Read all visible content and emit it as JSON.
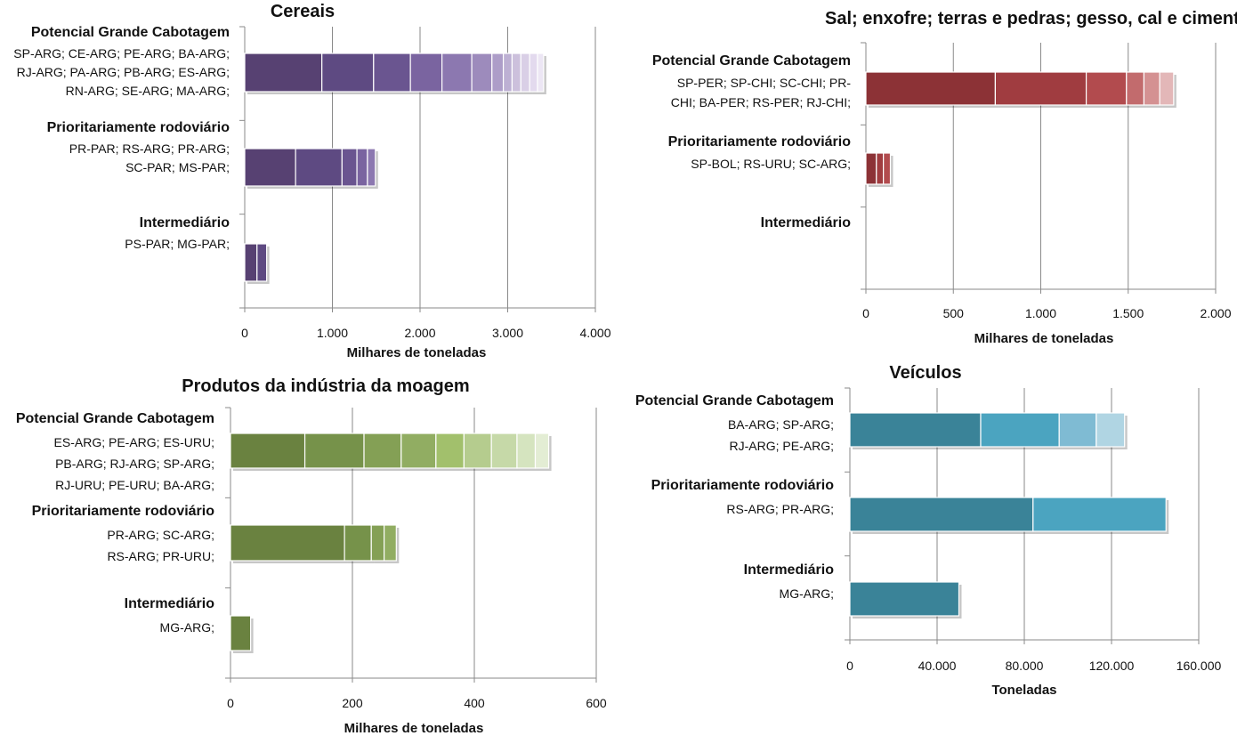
{
  "chart_data": [
    {
      "type": "bar",
      "stacked": true,
      "orientation": "horizontal",
      "title": "Cereais",
      "xlabel": "Milhares de toneladas",
      "xlim": [
        0,
        4000
      ],
      "xticks": [
        "0",
        "1.000",
        "2.000",
        "3.000",
        "4.000"
      ],
      "grid": true,
      "colors": [
        "#574172",
        "#5e4a82",
        "#6a5590",
        "#7a64a0",
        "#8c78b0",
        "#9d8bbc",
        "#ad9dc8",
        "#bdb0d3",
        "#ccc0dc",
        "#d9cfe6",
        "#e3daee",
        "#ece6f4"
      ],
      "categories": [
        {
          "group": "Potencial Grande Cabotagem",
          "routes": [
            "SP-ARG;  CE-ARG;  PE-ARG;  BA-ARG;",
            "RJ-ARG;  PA-ARG;  PB-ARG;  ES-ARG;",
            "RN-ARG;  SE-ARG;  MA-ARG;"
          ],
          "values": [
            880,
            590,
            420,
            360,
            340,
            230,
            130,
            100,
            100,
            100,
            90,
            70
          ]
        },
        {
          "group": "Prioritariamente rodoviário",
          "routes": [
            "PR-PAR;  RS-ARG;  PR-ARG;",
            "SC-PAR;  MS-PAR;"
          ],
          "values": [
            580,
            530,
            170,
            120,
            90
          ]
        },
        {
          "group": "Intermediário",
          "routes": [
            "PS-PAR;  MG-PAR;"
          ],
          "values": [
            140,
            110
          ]
        }
      ]
    },
    {
      "type": "bar",
      "stacked": true,
      "orientation": "horizontal",
      "title": "Sal; enxofre; terras e pedras; gesso, cal e cimento",
      "xlabel": "Milhares de toneladas",
      "xlim": [
        0,
        2000
      ],
      "xticks": [
        "0",
        "500",
        "1.000",
        "1.500",
        "2.000"
      ],
      "grid": true,
      "colors": [
        "#8c3236",
        "#a03c40",
        "#b24b4e",
        "#c26b6d",
        "#d49192",
        "#e3b7b8"
      ],
      "categories": [
        {
          "group": "Potencial Grande Cabotagem",
          "routes": [
            "SP-PER; SP-CHI; SC-CHI; PR-",
            "CHI; BA-PER; RS-PER; RJ-CHI;"
          ],
          "values": [
            740,
            520,
            230,
            100,
            90,
            80
          ]
        },
        {
          "group": "Prioritariamente rodoviário",
          "routes": [
            "SP-BOL; RS-URU; SC-ARG;"
          ],
          "values": [
            60,
            40,
            40
          ]
        },
        {
          "group": "Intermediário",
          "routes": [],
          "values": []
        }
      ]
    },
    {
      "type": "bar",
      "stacked": true,
      "orientation": "horizontal",
      "title": "Produtos da indústria da moagem",
      "xlabel": "Milhares de toneladas",
      "xlim": [
        0,
        600
      ],
      "xticks": [
        "0",
        "200",
        "400",
        "600"
      ],
      "grid": true,
      "colors": [
        "#6a8240",
        "#76924a",
        "#84a055",
        "#91ad62",
        "#a2c06c",
        "#b5cc8e",
        "#c6d9a8",
        "#d5e4bf",
        "#e3edd4"
      ],
      "categories": [
        {
          "group": "Potencial Grande Cabotagem",
          "routes": [
            "ES-ARG; PE-ARG; ES-URU;",
            "PB-ARG; RJ-ARG; SP-ARG;",
            "RJ-URU; PE-URU; BA-ARG;"
          ],
          "values": [
            122,
            97,
            61,
            57,
            46,
            45,
            42,
            30,
            22
          ]
        },
        {
          "group": "Prioritariamente rodoviário",
          "routes": [
            "PR-ARG; SC-ARG;",
            "RS-ARG; PR-URU;"
          ],
          "values": [
            187,
            44,
            21,
            20
          ]
        },
        {
          "group": "Intermediário",
          "routes": [
            "MG-ARG;"
          ],
          "values": [
            33
          ]
        }
      ]
    },
    {
      "type": "bar",
      "stacked": true,
      "orientation": "horizontal",
      "title": "Veículos",
      "xlabel": "Toneladas",
      "xlim": [
        0,
        160000
      ],
      "xticks": [
        "0",
        "40.000",
        "80.000",
        "120.000",
        "160.000"
      ],
      "grid": true,
      "colors": [
        "#3a8398",
        "#4ba4c0",
        "#7fbbd3",
        "#b0d5e3"
      ],
      "categories": [
        {
          "group": "Potencial Grande Cabotagem",
          "routes": [
            "BA-ARG; SP-ARG;",
            "RJ-ARG; PE-ARG;"
          ],
          "values": [
            60000,
            36000,
            17000,
            13000
          ]
        },
        {
          "group": "Prioritariamente rodoviário",
          "routes": [
            "RS-ARG; PR-ARG;"
          ],
          "values": [
            84000,
            61000
          ]
        },
        {
          "group": "Intermediário",
          "routes": [
            "MG-ARG;"
          ],
          "values": [
            50000
          ]
        }
      ]
    }
  ]
}
